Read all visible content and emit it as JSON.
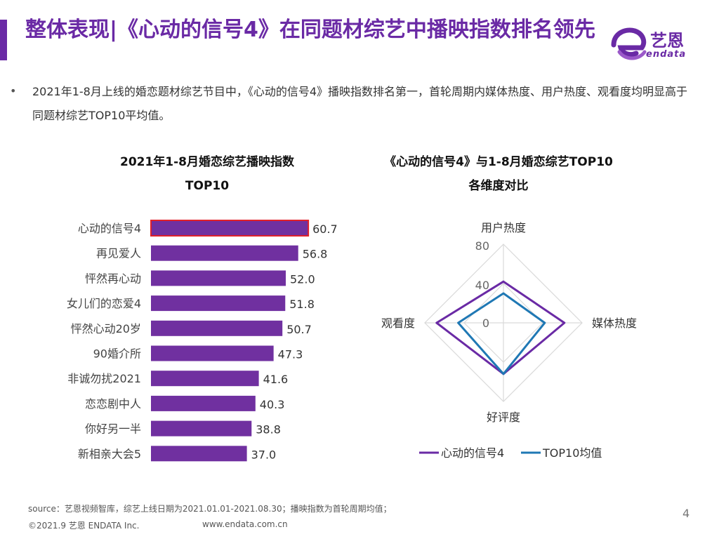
{
  "header": {
    "title": "整体表现|《心动的信号4》在同题材综艺中播映指数排名领先",
    "logo_text": "艺恩",
    "logo_sub": "endata"
  },
  "bullet": {
    "text": "2021年1-8月上线的婚恋题材综艺节目中，《心动的信号4》播映指数排名第一，首轮周期内媒体热度、用户热度、观看度均明显高于同题材综艺TOP10平均值。"
  },
  "colors": {
    "purple": "#6a2aa5",
    "bar_fill": "#7030a0",
    "highlight_border": "#e0202a",
    "avg_blue": "#1f78b4"
  },
  "chart_data": [
    {
      "type": "bar",
      "orientation": "horizontal",
      "title": "2021年1-8月婚恋综艺播映指数TOP10",
      "title_line1": "2021年1-8月婚恋综艺播映指数",
      "title_line2": "TOP10",
      "categories": [
        "心动的信号4",
        "再见爱人",
        "怦然再心动",
        "女儿们的恋爱4",
        "怦然心动20岁",
        "90婚介所",
        "非诚勿扰2021",
        "恋恋剧中人",
        "你好另一半",
        "新相亲大会5"
      ],
      "values": [
        60.7,
        56.8,
        52.0,
        51.8,
        50.7,
        47.3,
        41.6,
        40.3,
        38.8,
        37.0
      ],
      "labels": [
        "60.7",
        "56.8",
        "52.0",
        "51.8",
        "50.7",
        "47.3",
        "41.6",
        "40.3",
        "38.8",
        "37.0"
      ],
      "highlight_index": 0,
      "xlim": [
        0,
        65
      ]
    },
    {
      "type": "radar",
      "title": "《心动的信号4》与1-8月婚恋综艺TOP10各维度对比",
      "title_line1": "《心动的信号4》与1-8月婚恋综艺TOP10",
      "title_line2": "各维度对比",
      "axes": [
        "用户热度",
        "媒体热度",
        "好评度",
        "观看度"
      ],
      "rlim": [
        0,
        80
      ],
      "ticks": [
        "0",
        "40",
        "80"
      ],
      "tick_values": [
        0,
        40,
        80
      ],
      "series": [
        {
          "name": "心动的信号4",
          "values": [
            42,
            62,
            52,
            68
          ]
        },
        {
          "name": "TOP10均值",
          "values": [
            30,
            42,
            52,
            46
          ]
        }
      ],
      "legend_position": "bottom"
    }
  ],
  "footer": {
    "source": "source：艺恩视频智库，综艺上线日期为2021.01.01-2021.08.30；播映指数为首轮周期均值；",
    "copyright": "©2021.9 艺恩 ENDATA Inc.",
    "url": "www.endata.com.cn",
    "page_number": "4"
  }
}
